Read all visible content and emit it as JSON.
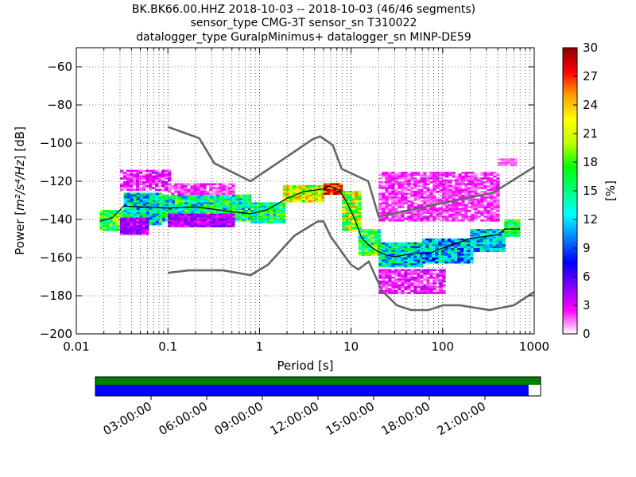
{
  "title": {
    "line1": "BK.BK66.00.HHZ   2018-10-03 -- 2018-10-03  (46/46 segments)",
    "line2": "sensor_type CMG-3T sensor_sn T310022",
    "line3": "datalogger_type GuralpMinimus+ datalogger_sn MINP-DE59"
  },
  "chart_data": [
    {
      "type": "heatmap",
      "xlabel": "Period [s]",
      "ylabel": "Power [m²/s⁴/Hz] [dB]",
      "ylabel_parts": {
        "before": "Power [",
        "math": "m²/s⁴/Hz",
        "after": "] [dB]"
      },
      "xscale": "log",
      "xlim": [
        0.01,
        1000
      ],
      "ylim": [
        -200,
        -50
      ],
      "x_ticks": [
        {
          "value": 0.01,
          "label": "0.01"
        },
        {
          "value": 0.1,
          "label": "0.1"
        },
        {
          "value": 1,
          "label": "1"
        },
        {
          "value": 10,
          "label": "10"
        },
        {
          "value": 100,
          "label": "100"
        },
        {
          "value": 1000,
          "label": "1000"
        }
      ],
      "y_ticks": [
        {
          "value": -60,
          "label": "−60"
        },
        {
          "value": -80,
          "label": "−80"
        },
        {
          "value": -100,
          "label": "−100"
        },
        {
          "value": -120,
          "label": "−120"
        },
        {
          "value": -140,
          "label": "−140"
        },
        {
          "value": -160,
          "label": "−160"
        },
        {
          "value": -180,
          "label": "−180"
        },
        {
          "value": -200,
          "label": "−200"
        }
      ],
      "grid": true,
      "colorbar": {
        "label": "[%]",
        "range": [
          0,
          30
        ],
        "ticks": [
          {
            "value": 0,
            "label": "0"
          },
          {
            "value": 3,
            "label": "3"
          },
          {
            "value": 6,
            "label": "6"
          },
          {
            "value": 9,
            "label": "9"
          },
          {
            "value": 12,
            "label": "12"
          },
          {
            "value": 15,
            "label": "15"
          },
          {
            "value": 18,
            "label": "18"
          },
          {
            "value": 21,
            "label": "21"
          },
          {
            "value": 24,
            "label": "24"
          },
          {
            "value": 27,
            "label": "27"
          },
          {
            "value": 30,
            "label": "30"
          }
        ],
        "colors": [
          "#ffffff",
          "#ff00ff",
          "#8000ff",
          "#0000ff",
          "#0080ff",
          "#00ffff",
          "#00ff80",
          "#00ff00",
          "#c0ff00",
          "#ffff00",
          "#ffa000",
          "#ff0000",
          "#8b0000"
        ]
      },
      "noise_model_color": "#666666",
      "nhnm": {
        "period": [
          0.1,
          0.22,
          0.32,
          0.8,
          3.8,
          4.6,
          6.3,
          7.9,
          15.4,
          20,
          354.8,
          1000
        ],
        "power": [
          -91.5,
          -97.4,
          -110.5,
          -120,
          -98,
          -96.5,
          -101,
          -113.5,
          -120,
          -138.5,
          -126,
          -112.5
        ]
      },
      "nlnm": {
        "period": [
          0.1,
          0.17,
          0.4,
          0.8,
          1.24,
          2.4,
          4.3,
          5,
          6,
          10,
          12,
          15.6,
          21.9,
          31.6,
          45,
          70,
          101,
          154,
          328,
          600,
          1000
        ],
        "power": [
          -168,
          -166.7,
          -166.7,
          -169.2,
          -163.7,
          -148.6,
          -141.1,
          -141.1,
          -149,
          -163.8,
          -166.2,
          -162.1,
          -177.5,
          -185,
          -187.5,
          -187.5,
          -185,
          -185,
          -187.5,
          -185,
          -178
        ]
      },
      "mode_curve": {
        "period": [
          0.018,
          0.025,
          0.033,
          0.05,
          0.1,
          0.2,
          0.3,
          0.5,
          0.8,
          1.2,
          2,
          3,
          5,
          6,
          7.5,
          9,
          11,
          13,
          16,
          20,
          25,
          30,
          40,
          50,
          70,
          100,
          200,
          400,
          480,
          700
        ],
        "power": [
          -141,
          -139,
          -133,
          -133.5,
          -134,
          -133.5,
          -134.5,
          -136,
          -137,
          -135,
          -129,
          -125.5,
          -124,
          -122.5,
          -125,
          -131,
          -140,
          -149.5,
          -154,
          -157,
          -159,
          -159.5,
          -158.5,
          -157.5,
          -158,
          -155,
          -150,
          -148,
          -145,
          -145
        ]
      },
      "psd_cells": [
        {
          "p": [
            0.018,
            0.033
          ],
          "db": [
            -145,
            -135
          ],
          "pct": [
            12,
            22
          ]
        },
        {
          "p": [
            0.033,
            0.08
          ],
          "db": [
            -142,
            -126
          ],
          "pct": [
            8,
            18
          ]
        },
        {
          "p": [
            0.08,
            0.8
          ],
          "db": [
            -140,
            -127
          ],
          "pct": [
            9,
            20
          ]
        },
        {
          "p": [
            0.8,
            1.8
          ],
          "db": [
            -141,
            -131
          ],
          "pct": [
            10,
            20
          ]
        },
        {
          "p": [
            1.8,
            5
          ],
          "db": [
            -131,
            -122
          ],
          "pct": [
            16,
            26
          ]
        },
        {
          "p": [
            5,
            8
          ],
          "db": [
            -127,
            -121
          ],
          "pct": [
            24,
            30
          ]
        },
        {
          "p": [
            8,
            12
          ],
          "db": [
            -145,
            -125
          ],
          "pct": [
            14,
            26
          ]
        },
        {
          "p": [
            12,
            20
          ],
          "db": [
            -158,
            -145
          ],
          "pct": [
            10,
            22
          ]
        },
        {
          "p": [
            20,
            60
          ],
          "db": [
            -164,
            -152
          ],
          "pct": [
            8,
            18
          ]
        },
        {
          "p": [
            60,
            200
          ],
          "db": [
            -162,
            -150
          ],
          "pct": [
            7,
            16
          ]
        },
        {
          "p": [
            200,
            470
          ],
          "db": [
            -156,
            -145
          ],
          "pct": [
            8,
            16
          ]
        },
        {
          "p": [
            470,
            650
          ],
          "db": [
            -148,
            -140
          ],
          "pct": [
            12,
            20
          ]
        },
        {
          "p": [
            0.03,
            0.1
          ],
          "db": [
            -125,
            -114
          ],
          "pct": [
            1,
            4
          ]
        },
        {
          "p": [
            0.1,
            0.5
          ],
          "db": [
            -127,
            -121
          ],
          "pct": [
            1,
            3
          ]
        },
        {
          "p": [
            20,
            400
          ],
          "db": [
            -140,
            -115
          ],
          "pct": [
            1,
            3
          ]
        },
        {
          "p": [
            400,
            600
          ],
          "db": [
            -112,
            -108
          ],
          "pct": [
            1,
            2
          ]
        },
        {
          "p": [
            20,
            100
          ],
          "db": [
            -178,
            -166
          ],
          "pct": [
            1,
            4
          ]
        },
        {
          "p": [
            0.03,
            0.06
          ],
          "db": [
            -147,
            -139
          ],
          "pct": [
            2,
            6
          ]
        },
        {
          "p": [
            0.1,
            0.5
          ],
          "db": [
            -143,
            -137
          ],
          "pct": [
            2,
            6
          ]
        }
      ]
    },
    {
      "type": "timeline",
      "x_tick_labels": [
        "03:00:00",
        "06:00:00",
        "09:00:00",
        "12:00:00",
        "15:00:00",
        "18:00:00",
        "21:00:00"
      ],
      "x_tick_hours": [
        3,
        6,
        9,
        12,
        15,
        18,
        21
      ],
      "x_range_hours": [
        0,
        24
      ],
      "bars": [
        {
          "name": "",
          "color": "#008000",
          "start_hour": 0,
          "end_hour": 24
        },
        {
          "name": "",
          "color": "#0000ff",
          "start_hour": 0,
          "end_hour": 23.35
        }
      ]
    }
  ]
}
